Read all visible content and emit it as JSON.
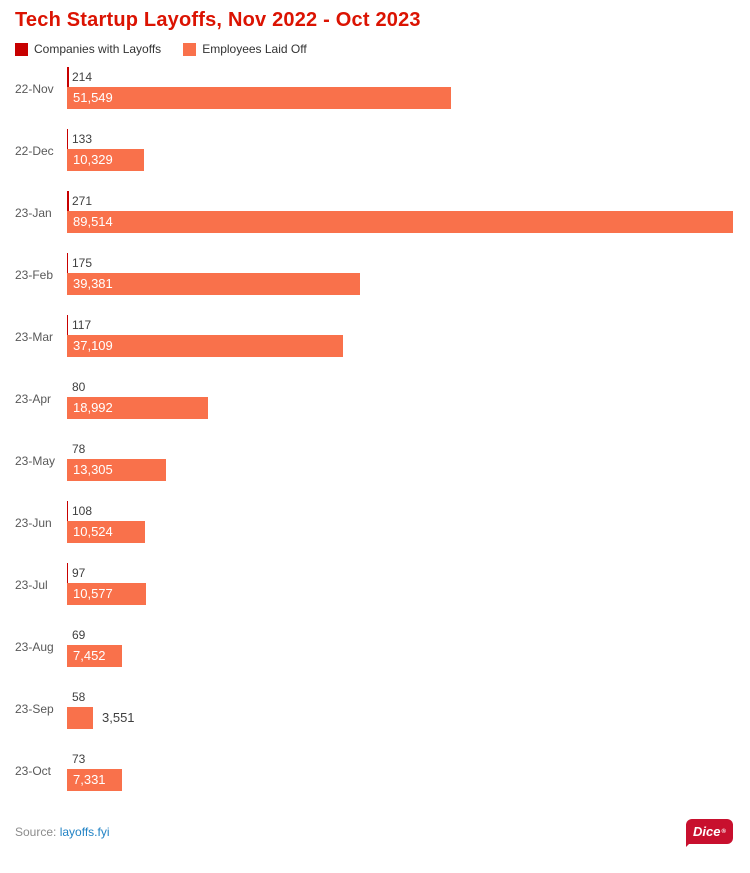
{
  "title": "Tech Startup Layoffs, Nov 2022 - Oct 2023",
  "legend": {
    "companies": "Companies with Layoffs",
    "employees": "Employees Laid Off"
  },
  "colors": {
    "title_red": "#db1302",
    "companies_red": "#c70000",
    "employees_orange": "#f9714b",
    "value_text": "#3f3f3f",
    "category_text": "#595959",
    "bar_label_inside": "#ffffff",
    "source_text": "#8c8c8c",
    "link_blue": "#2283c5",
    "dice_red": "#c8102e"
  },
  "chart_data": {
    "type": "bar",
    "orientation": "horizontal",
    "title": "Tech Startup Layoffs, Nov 2022 - Oct 2023",
    "categories": [
      "22-Nov",
      "22-Dec",
      "23-Jan",
      "23-Feb",
      "23-Mar",
      "23-Apr",
      "23-May",
      "23-Jun",
      "23-Jul",
      "23-Aug",
      "23-Sep",
      "23-Oct"
    ],
    "series": [
      {
        "name": "Companies with Layoffs",
        "color": "#c70000",
        "values": [
          214,
          133,
          271,
          175,
          117,
          80,
          78,
          108,
          97,
          69,
          58,
          73
        ]
      },
      {
        "name": "Employees Laid Off",
        "color": "#f9714b",
        "values": [
          51549,
          10329,
          89514,
          39381,
          37109,
          18992,
          13305,
          10524,
          10577,
          7452,
          3551,
          7331
        ]
      }
    ],
    "value_labels": {
      "companies": [
        "214",
        "133",
        "271",
        "175",
        "117",
        "80",
        "78",
        "108",
        "97",
        "69",
        "58",
        "73"
      ],
      "employees": [
        "51,549",
        "10,329",
        "89,514",
        "39,381",
        "37,109",
        "18,992",
        "13,305",
        "10,524",
        "10,577",
        "7,452",
        "3,551",
        "7,331"
      ]
    },
    "xlim": [
      0,
      89514
    ],
    "grid": false,
    "legend_position": "top-left",
    "xlabel": "",
    "ylabel": ""
  },
  "footer": {
    "source_label": "Source:",
    "source_link": "layoffs.fyi",
    "brand": "Dice",
    "brand_mark": "®"
  }
}
